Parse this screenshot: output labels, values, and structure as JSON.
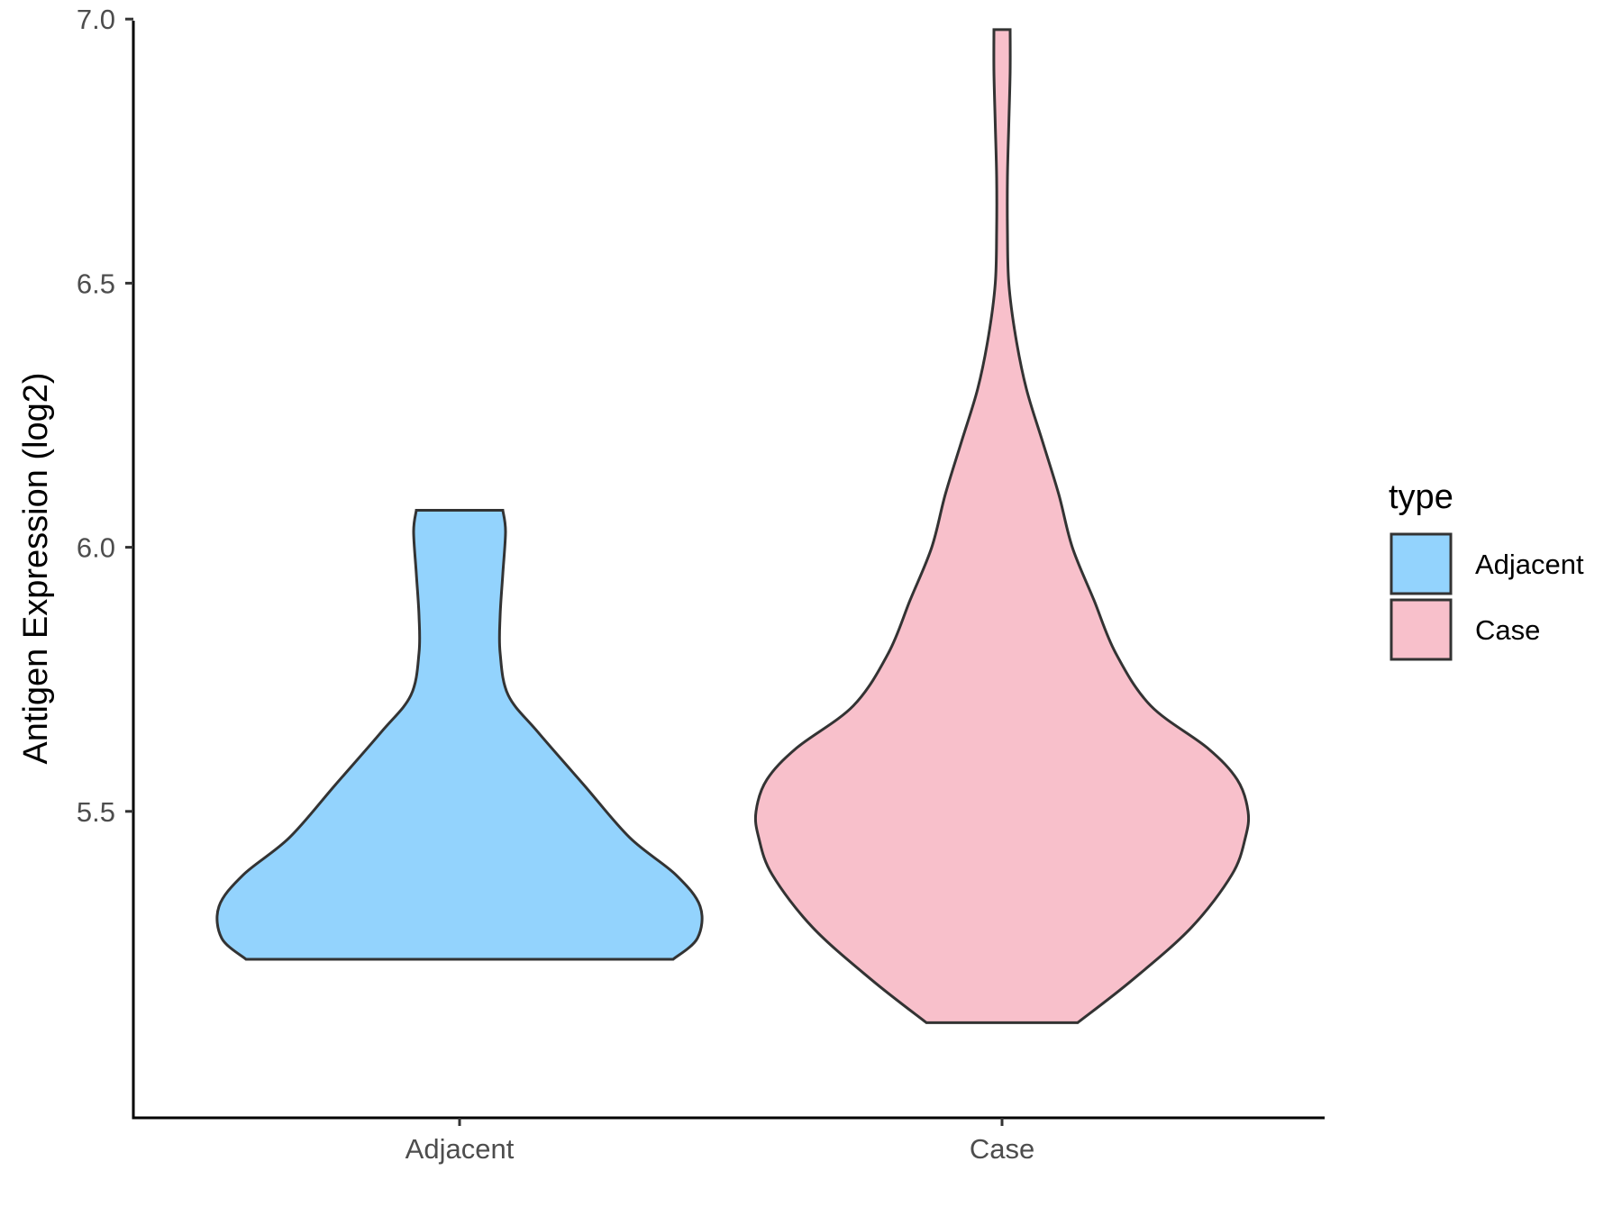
{
  "chart_data": {
    "type": "violin",
    "title": "",
    "xlabel": "",
    "ylabel": "Antigen Expression (log2)",
    "ylim": [
      4.92,
      7.07
    ],
    "yticks": [
      "5.5",
      "6.0",
      "6.5",
      "7.0"
    ],
    "ytick_values": [
      5.5,
      6.0,
      6.5,
      7.0
    ],
    "categories": [
      "Adjacent",
      "Case"
    ],
    "grid": false,
    "legend": {
      "title": "type",
      "position": "right",
      "entries": [
        "Adjacent",
        "Case"
      ]
    },
    "series": [
      {
        "name": "Adjacent",
        "color": "#93D3FD",
        "min": 5.22,
        "max": 6.07,
        "density_profile": [
          [
            5.22,
            0.79
          ],
          [
            5.26,
            0.88
          ],
          [
            5.32,
            0.89
          ],
          [
            5.38,
            0.8
          ],
          [
            5.45,
            0.63
          ],
          [
            5.55,
            0.46
          ],
          [
            5.65,
            0.29
          ],
          [
            5.72,
            0.18
          ],
          [
            5.8,
            0.15
          ],
          [
            5.87,
            0.15
          ],
          [
            5.95,
            0.16
          ],
          [
            6.03,
            0.17
          ],
          [
            6.07,
            0.16
          ]
        ]
      },
      {
        "name": "Case",
        "color": "#F8C0CB",
        "min": 5.1,
        "max": 6.98,
        "density_profile": [
          [
            5.1,
            0.28
          ],
          [
            5.18,
            0.48
          ],
          [
            5.28,
            0.7
          ],
          [
            5.38,
            0.85
          ],
          [
            5.45,
            0.9
          ],
          [
            5.5,
            0.91
          ],
          [
            5.56,
            0.87
          ],
          [
            5.62,
            0.76
          ],
          [
            5.7,
            0.55
          ],
          [
            5.8,
            0.42
          ],
          [
            5.9,
            0.34
          ],
          [
            6.0,
            0.26
          ],
          [
            6.1,
            0.21
          ],
          [
            6.2,
            0.15
          ],
          [
            6.3,
            0.09
          ],
          [
            6.4,
            0.05
          ],
          [
            6.5,
            0.025
          ],
          [
            6.6,
            0.02
          ],
          [
            6.7,
            0.02
          ],
          [
            6.8,
            0.025
          ],
          [
            6.9,
            0.03
          ],
          [
            6.98,
            0.03
          ]
        ]
      }
    ]
  }
}
